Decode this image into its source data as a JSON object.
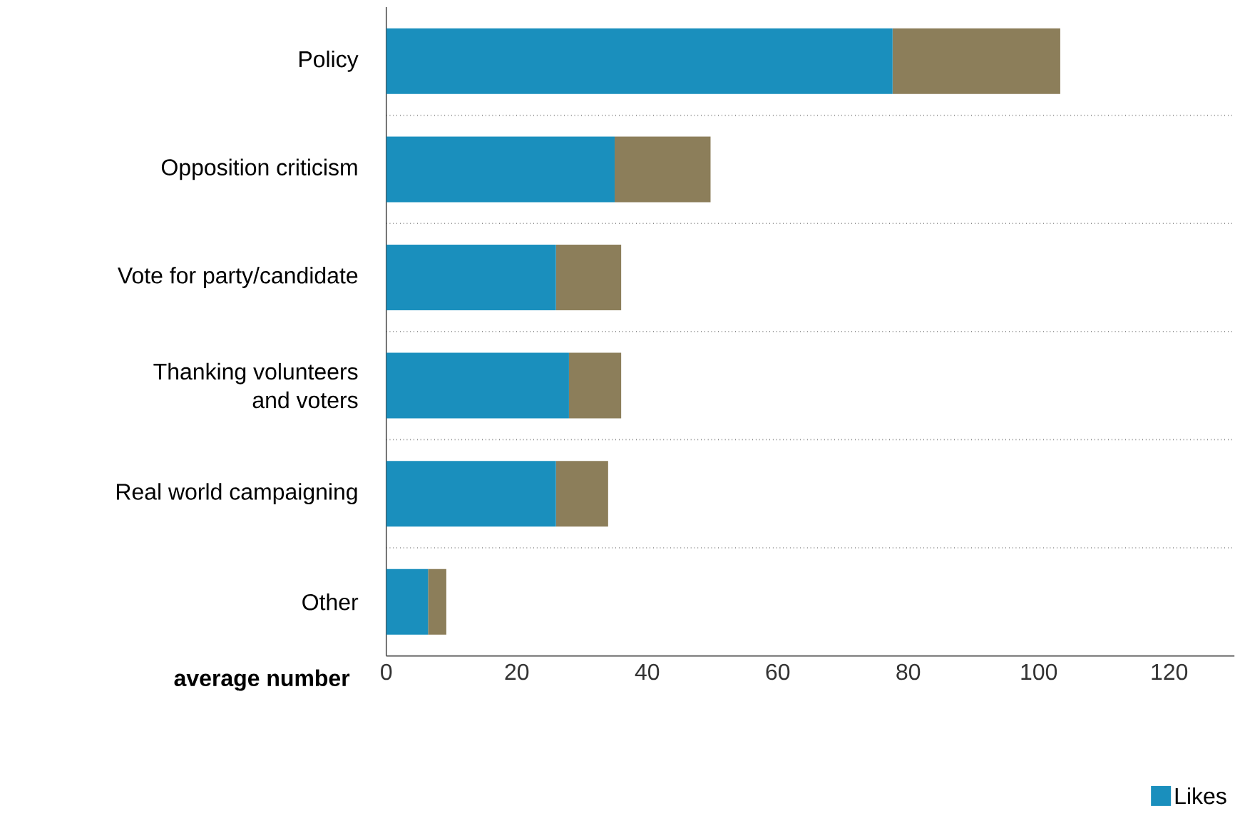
{
  "chart_data": {
    "type": "bar",
    "orientation": "horizontal",
    "stacked": true,
    "categories": [
      "Policy",
      "Opposition criticism",
      "Vote for party/candidate",
      "Thanking volunteers and voters",
      "Real world campaigning",
      "Other"
    ],
    "series": [
      {
        "name": "Likes",
        "color": "#1a8fbd",
        "values": [
          77.6,
          35,
          26,
          28,
          26,
          6.4
        ]
      },
      {
        "color": "#8c7e5a",
        "values": [
          25.7,
          14.7,
          10,
          8,
          8,
          2.8
        ]
      }
    ],
    "xlabel": "average number",
    "xlim": [
      0,
      130
    ],
    "xticks": [
      0,
      20,
      40,
      60,
      80,
      100,
      120
    ],
    "grid": "y",
    "legend": "bottom right"
  }
}
